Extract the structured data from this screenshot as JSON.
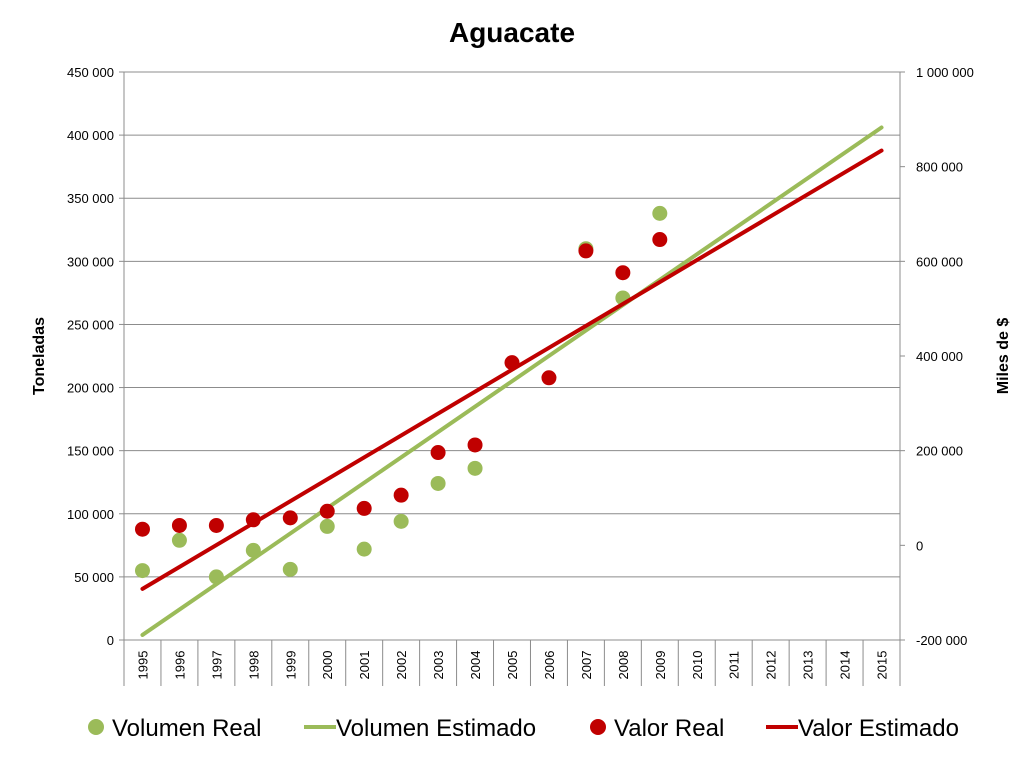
{
  "chart_data": {
    "type": "scatter",
    "title": "Aguacate",
    "x_categories": [
      "1995",
      "1996",
      "1997",
      "1998",
      "1999",
      "2000",
      "2001",
      "2002",
      "2003",
      "2004",
      "2005",
      "2006",
      "2007",
      "2008",
      "2009",
      "2010",
      "2011",
      "2012",
      "2013",
      "2014",
      "2015"
    ],
    "y_left": {
      "label": "Toneladas",
      "lim": [
        0,
        450000
      ],
      "ticks": [
        0,
        50000,
        100000,
        150000,
        200000,
        250000,
        300000,
        350000,
        400000,
        450000
      ],
      "tick_labels": [
        "0",
        "50 000",
        "100 000",
        "150 000",
        "200 000",
        "250 000",
        "300 000",
        "350 000",
        "400 000",
        "450 000"
      ]
    },
    "y_right": {
      "label": "Miles de $",
      "lim": [
        -200000,
        1000000
      ],
      "ticks": [
        -200000,
        0,
        200000,
        400000,
        600000,
        800000,
        1000000
      ],
      "tick_labels": [
        "-200 000",
        "0",
        "200 000",
        "400 000",
        "600 000",
        "800 000",
        "1 000 000"
      ]
    },
    "grid": true,
    "legend_position": "bottom",
    "series": [
      {
        "name": "Volumen Real",
        "kind": "points",
        "axis": "left",
        "color": "#9BBB59",
        "x": [
          "1995",
          "1996",
          "1997",
          "1998",
          "1999",
          "2000",
          "2001",
          "2002",
          "2003",
          "2004",
          "2007",
          "2008",
          "2009"
        ],
        "y": [
          55000,
          79000,
          50000,
          71000,
          56000,
          90000,
          72000,
          94000,
          124000,
          136000,
          310000,
          271000,
          338000
        ]
      },
      {
        "name": "Volumen Estimado",
        "kind": "line",
        "axis": "left",
        "color": "#9BBB59",
        "x": [
          "1995",
          "2015"
        ],
        "y": [
          4000,
          406000
        ]
      },
      {
        "name": "Valor Real",
        "kind": "points",
        "axis": "right",
        "color": "#C00000",
        "x": [
          "1995",
          "1996",
          "1997",
          "1998",
          "1999",
          "2000",
          "2001",
          "2002",
          "2003",
          "2004",
          "2005",
          "2006",
          "2007",
          "2008",
          "2009"
        ],
        "y": [
          34000,
          42000,
          42000,
          54000,
          58000,
          72000,
          78000,
          106000,
          196000,
          212000,
          386000,
          354000,
          622000,
          576000,
          646000
        ]
      },
      {
        "name": "Valor Estimado",
        "kind": "line",
        "axis": "right",
        "color": "#C00000",
        "x": [
          "1995",
          "2015"
        ],
        "y": [
          -92000,
          834000
        ]
      }
    ]
  }
}
